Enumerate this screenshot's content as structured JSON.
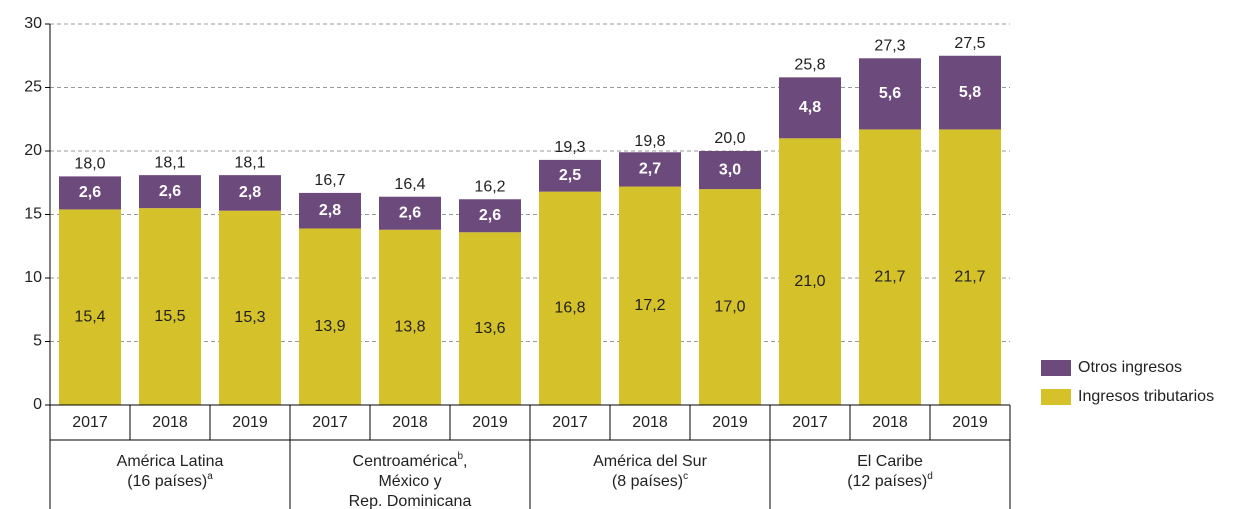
{
  "chart_data": {
    "type": "stacked_bar",
    "categories": [
      "2017",
      "2018",
      "2019",
      "2017",
      "2018",
      "2019",
      "2017",
      "2018",
      "2019",
      "2017",
      "2018",
      "2019"
    ],
    "groups": [
      {
        "size": 3,
        "lines": [
          [
            {
              "text": "América Latina"
            }
          ],
          [
            {
              "text": "(16 países)"
            },
            {
              "text": "a",
              "sup": true
            }
          ]
        ]
      },
      {
        "size": 3,
        "lines": [
          [
            {
              "text": "Centroamérica"
            },
            {
              "text": "b",
              "sup": true
            },
            {
              "text": ","
            }
          ],
          [
            {
              "text": "México y"
            }
          ],
          [
            {
              "text": "Rep. Dominicana"
            }
          ]
        ]
      },
      {
        "size": 3,
        "lines": [
          [
            {
              "text": "América del Sur"
            }
          ],
          [
            {
              "text": "(8 países)"
            },
            {
              "text": "c",
              "sup": true
            }
          ]
        ]
      },
      {
        "size": 3,
        "lines": [
          [
            {
              "text": "El Caribe"
            }
          ],
          [
            {
              "text": "(12 países)"
            },
            {
              "text": "d",
              "sup": true
            }
          ]
        ]
      }
    ],
    "series": [
      {
        "name": "Ingresos tributarios",
        "color": "#d5c22b",
        "values": [
          15.4,
          15.5,
          15.3,
          13.9,
          13.8,
          13.6,
          16.8,
          17.2,
          17.0,
          21.0,
          21.7,
          21.7
        ],
        "value_labels": [
          "15,4",
          "15,5",
          "15,3",
          "13,9",
          "13,8",
          "13,6",
          "16,8",
          "17,2",
          "17,0",
          "21,0",
          "21,7",
          "21,7"
        ]
      },
      {
        "name": "Otros ingresos",
        "color": "#6d4a7c",
        "values": [
          2.6,
          2.6,
          2.8,
          2.8,
          2.6,
          2.6,
          2.5,
          2.7,
          3.0,
          4.8,
          5.6,
          5.8
        ],
        "value_labels": [
          "2,6",
          "2,6",
          "2,8",
          "2,8",
          "2,6",
          "2,6",
          "2,5",
          "2,7",
          "3,0",
          "4,8",
          "5,6",
          "5,8"
        ]
      }
    ],
    "totals": [
      18.0,
      18.1,
      18.1,
      16.7,
      16.4,
      16.2,
      19.3,
      19.8,
      20.0,
      25.8,
      27.3,
      27.5
    ],
    "total_labels": [
      "18,0",
      "18,1",
      "18,1",
      "16,7",
      "16,4",
      "16,2",
      "19,3",
      "19,8",
      "20,0",
      "25,8",
      "27,3",
      "27,5"
    ],
    "ylim": [
      0,
      30
    ],
    "yticks": [
      0,
      5,
      10,
      15,
      20,
      25,
      30
    ],
    "grid": true,
    "legend": "bottom-right"
  }
}
